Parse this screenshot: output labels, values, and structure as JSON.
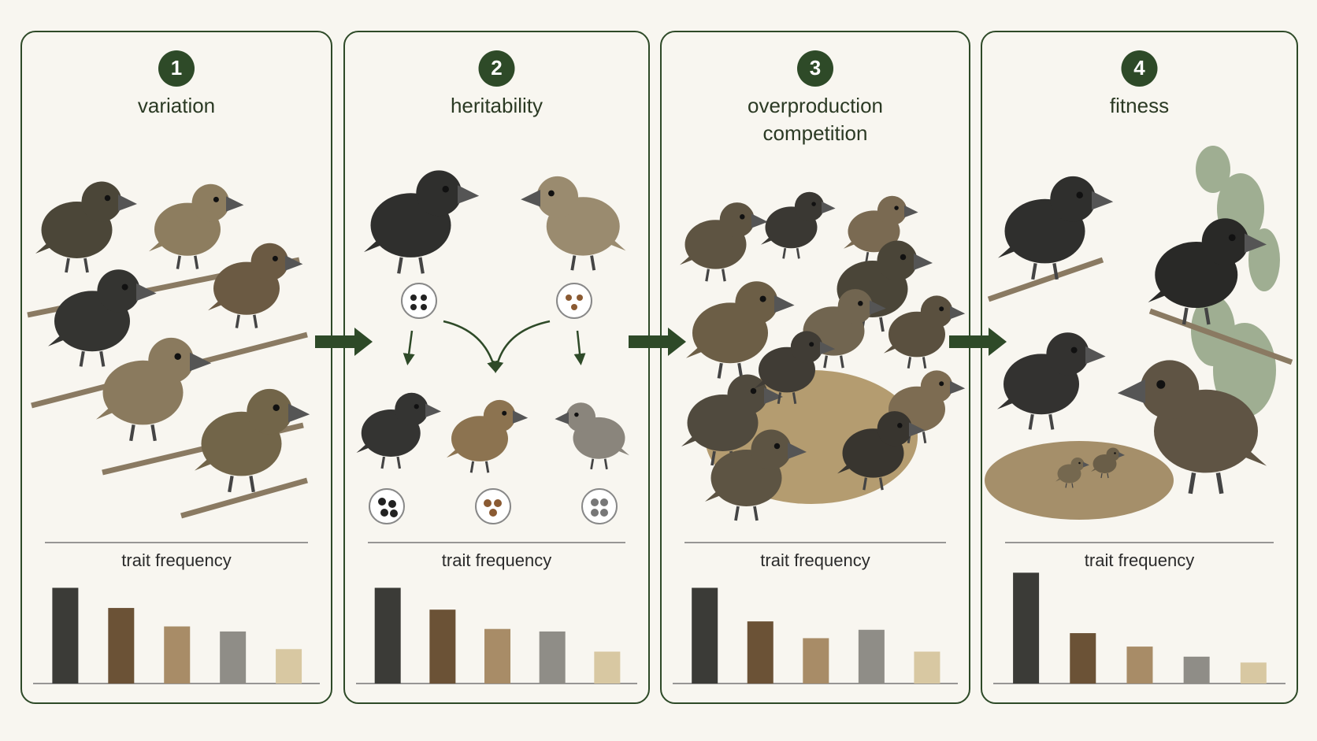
{
  "panels": [
    {
      "number": "1",
      "title_lines": [
        "variation"
      ],
      "chart": {
        "type": "bar",
        "label": "trait frequency",
        "values": [
          114,
          90,
          68,
          62,
          41
        ],
        "colors": [
          "#3b3b37",
          "#6b5236",
          "#a88c67",
          "#8f8d87",
          "#d8c8a2"
        ]
      }
    },
    {
      "number": "2",
      "title_lines": [
        "heritability"
      ],
      "chart": {
        "type": "bar",
        "label": "trait frequency",
        "values": [
          114,
          88,
          65,
          62,
          38
        ],
        "colors": [
          "#3b3b37",
          "#6b5236",
          "#a88c67",
          "#8f8d87",
          "#d8c8a2"
        ]
      }
    },
    {
      "number": "3",
      "title_lines": [
        "overproduction",
        "competition"
      ],
      "chart": {
        "type": "bar",
        "label": "trait frequency",
        "values": [
          114,
          74,
          54,
          64,
          38
        ],
        "colors": [
          "#3b3b37",
          "#6b5236",
          "#a88c67",
          "#8f8d87",
          "#d8c8a2"
        ]
      }
    },
    {
      "number": "4",
      "title_lines": [
        "fitness"
      ],
      "chart": {
        "type": "bar",
        "label": "trait frequency",
        "values": [
          132,
          60,
          44,
          32,
          25
        ],
        "colors": [
          "#3b3b37",
          "#6b5236",
          "#a88c67",
          "#8f8d87",
          "#d8c8a2"
        ]
      }
    }
  ]
}
